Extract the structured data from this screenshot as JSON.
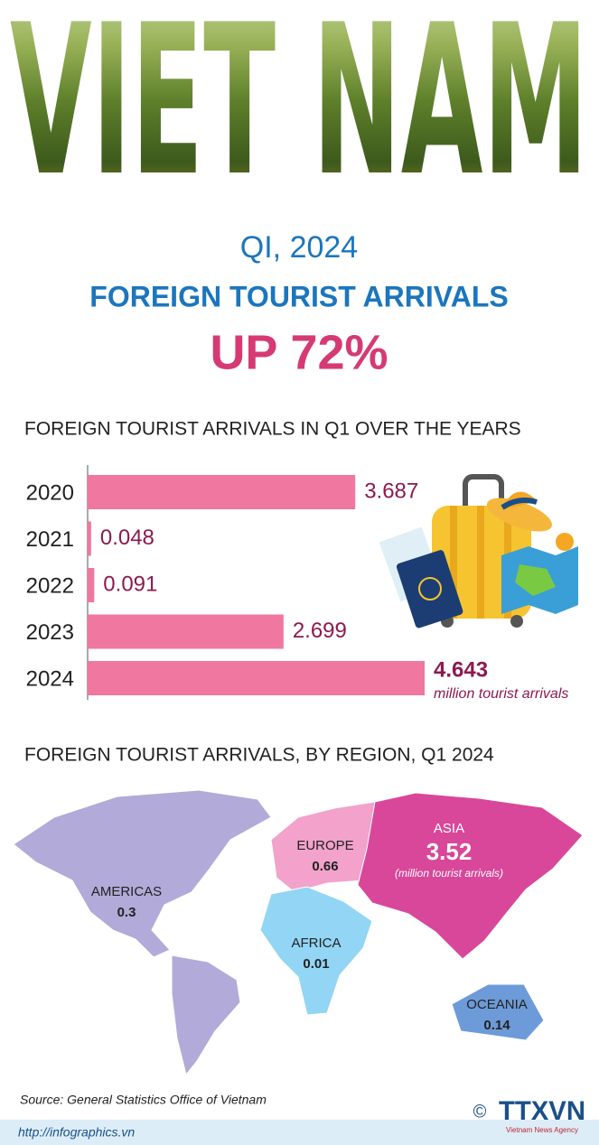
{
  "header": {
    "banner": "VIET NAM",
    "period": "QI, 2024",
    "headline": "FOREIGN TOURIST ARRIVALS",
    "change": "UP 72%"
  },
  "chart_data": [
    {
      "type": "bar",
      "orientation": "horizontal",
      "title": "FOREIGN TOURIST ARRIVALS IN Q1 OVER THE YEARS",
      "categories": [
        "2020",
        "2021",
        "2022",
        "2023",
        "2024"
      ],
      "values": [
        3.687,
        0.048,
        0.091,
        2.699,
        4.643
      ],
      "unit_note": "million tourist arrivals",
      "color": "#ef77a0",
      "label_color": "#8c1a50"
    },
    {
      "type": "map",
      "title": "FOREIGN TOURIST ARRIVALS, BY REGION, Q1 2024",
      "categories": [
        "AMERICAS",
        "EUROPE",
        "ASIA",
        "AFRICA",
        "OCEANIA"
      ],
      "values": [
        0.3,
        0.66,
        3.52,
        0.01,
        0.14
      ],
      "colors": [
        "#b2aad8",
        "#f2a2cb",
        "#d8479a",
        "#92d5f4",
        "#6d9bd9"
      ],
      "unit_note": "(million tourist arrivals)"
    }
  ],
  "footer": {
    "source": "Source:  General Statistics Office of Vietnam",
    "url": "http://infographics.vn",
    "copyright": "©",
    "brand": "TTXVN",
    "brand_sub": "Vietnam News Agency"
  }
}
